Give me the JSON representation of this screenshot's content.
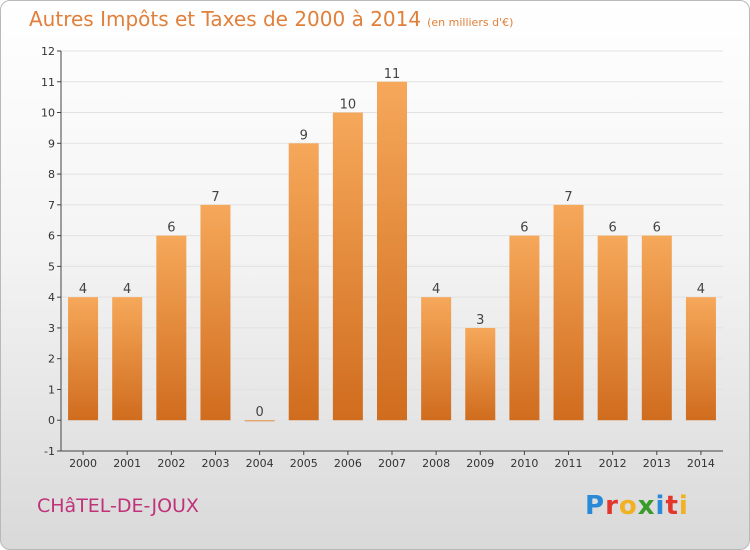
{
  "header": {
    "title": "Autres Impôts et Taxes de 2000 à 2014",
    "unit": "(en milliers d'€)"
  },
  "footer": {
    "commune": "CHâTEL-DE-JOUX",
    "logo_letters": [
      "P",
      "r",
      "o",
      "x",
      "i",
      "t",
      "i"
    ],
    "logo_colors": [
      "#2a8ad8",
      "#e2372c",
      "#f2b023",
      "#3b9a2c",
      "#2a8ad8",
      "#e2372c",
      "#f2b023"
    ]
  },
  "colors": {
    "bar_top": "#f6a85a",
    "bar_bottom": "#d06c1e",
    "title": "#e0803a",
    "commune": "#c0327a"
  },
  "chart_data": {
    "type": "bar",
    "title": "Autres Impôts et Taxes de 2000 à 2014",
    "subtitle": "(en milliers d'€)",
    "xlabel": "",
    "ylabel": "",
    "categories": [
      "2000",
      "2001",
      "2002",
      "2003",
      "2004",
      "2005",
      "2006",
      "2007",
      "2008",
      "2009",
      "2010",
      "2011",
      "2012",
      "2013",
      "2014"
    ],
    "values": [
      4,
      4,
      6,
      7,
      0,
      9,
      10,
      11,
      4,
      3,
      6,
      7,
      6,
      6,
      4
    ],
    "ylim": [
      -1,
      12
    ],
    "yticks": [
      -1,
      0,
      1,
      2,
      3,
      4,
      5,
      6,
      7,
      8,
      9,
      10,
      11,
      12
    ],
    "grid": true,
    "legend": "none"
  }
}
